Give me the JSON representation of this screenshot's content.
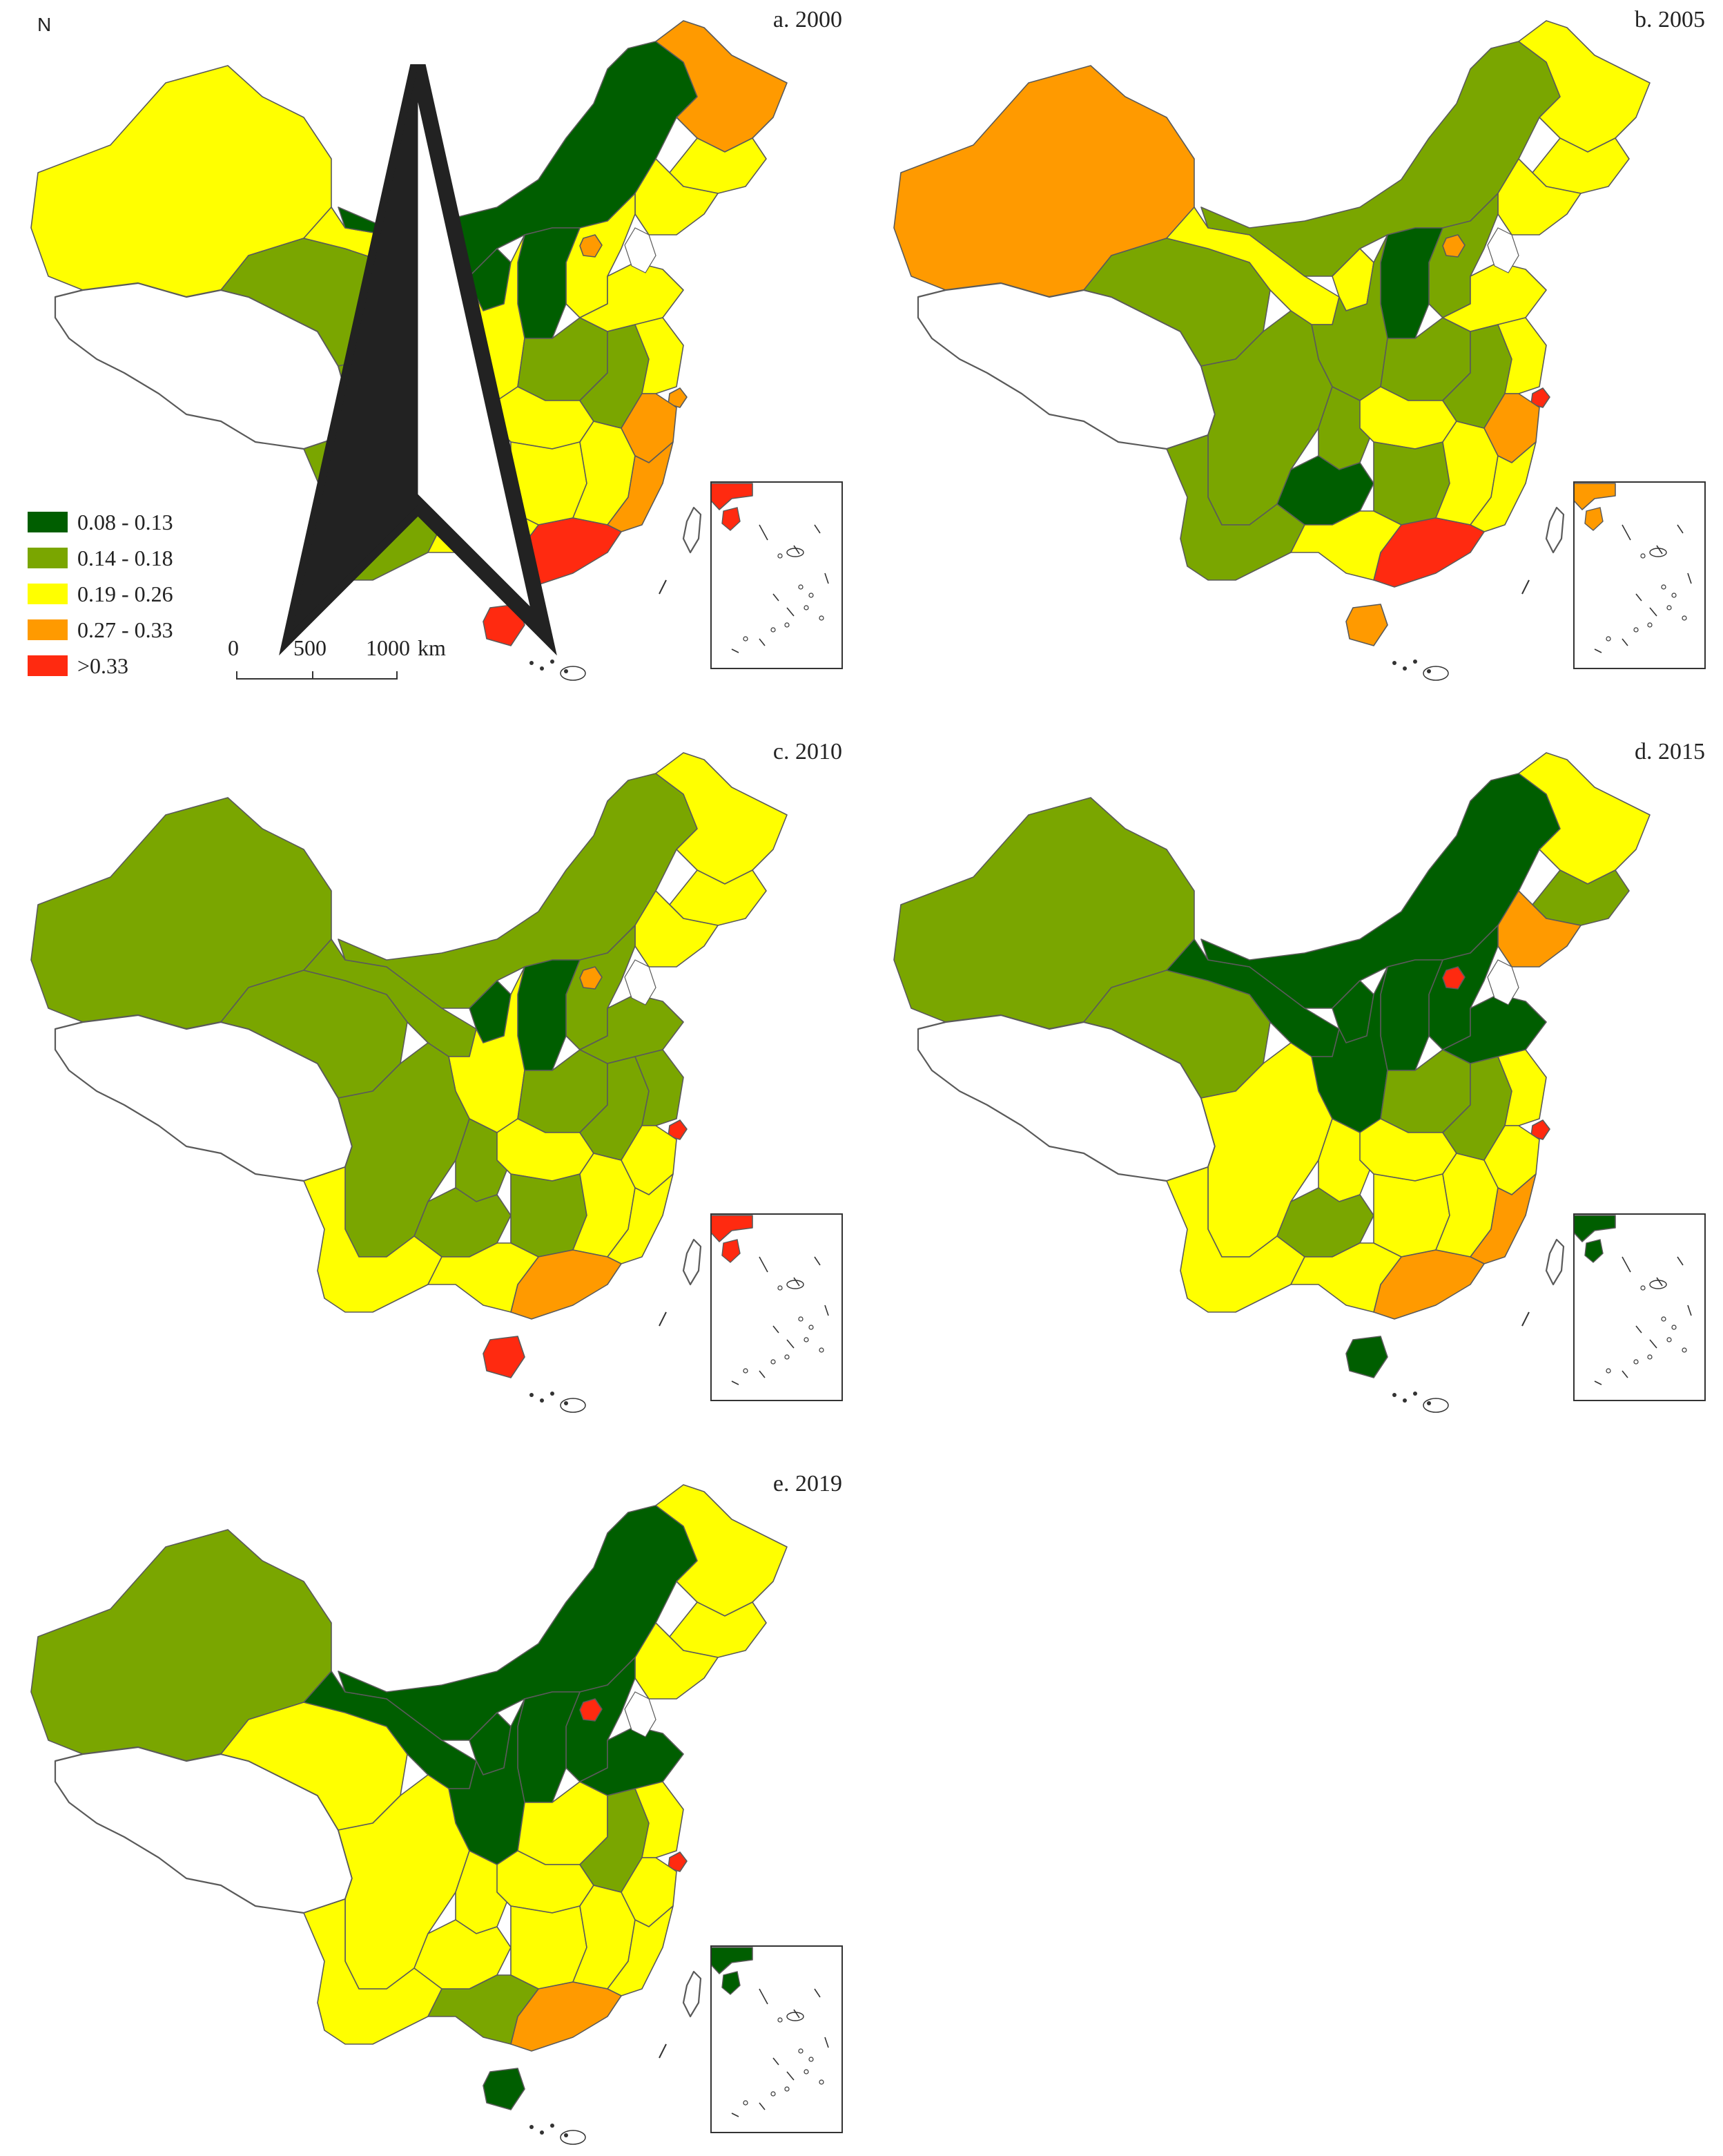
{
  "colors": {
    "c1": "#005e00",
    "c2": "#7aa600",
    "c3": "#ffff00",
    "c4": "#ff9a00",
    "c5": "#ff2a10",
    "nodata": "#ffffff",
    "border": "#5a5a5a"
  },
  "legend": {
    "items": [
      {
        "label": "0.08 - 0.13",
        "color": "#005e00"
      },
      {
        "label": "0.14 - 0.18",
        "color": "#7aa600"
      },
      {
        "label": "0.19 - 0.26",
        "color": "#ffff00"
      },
      {
        "label": "0.27 - 0.33",
        "color": "#ff9a00"
      },
      {
        "label": ">0.33",
        "color": "#ff2a10"
      }
    ]
  },
  "scale_bar": {
    "labels": [
      "0",
      "500",
      "1000"
    ],
    "unit": "km"
  },
  "north_arrow": {
    "label": "N"
  },
  "panels": [
    {
      "title": "a. 2000",
      "regions": {
        "xinjiang": "c3",
        "tibet": "nodata",
        "qinghai": "c2",
        "gansu": "c3",
        "inner_mongolia": "c1",
        "heilongjiang": "c4",
        "jilin": "c3",
        "liaoning": "c3",
        "hebei": "c3",
        "beijing": "c4",
        "shanxi": "c1",
        "shaanxi": "c3",
        "ningxia": "c1",
        "henan": "c2",
        "shandong": "c3",
        "sichuan": "c2",
        "chongqing": "c1",
        "guizhou": "c1",
        "yunnan": "c2",
        "hubei": "c3",
        "hunan": "c3",
        "jiangxi": "c3",
        "anhui": "c2",
        "jiangsu": "c3",
        "shanghai": "c4",
        "zhejiang": "c4",
        "fujian": "c4",
        "guangdong": "c5",
        "guangxi": "c3",
        "hainan": "c5",
        "taiwan": "nodata",
        "scs": "c5"
      }
    },
    {
      "title": "b. 2005",
      "regions": {
        "xinjiang": "c4",
        "tibet": "nodata",
        "qinghai": "c2",
        "gansu": "c3",
        "inner_mongolia": "c2",
        "heilongjiang": "c3",
        "jilin": "c3",
        "liaoning": "c3",
        "hebei": "c2",
        "beijing": "c4",
        "shanxi": "c1",
        "shaanxi": "c2",
        "ningxia": "c3",
        "henan": "c2",
        "shandong": "c3",
        "sichuan": "c2",
        "chongqing": "c2",
        "guizhou": "c1",
        "yunnan": "c2",
        "hubei": "c3",
        "hunan": "c2",
        "jiangxi": "c3",
        "anhui": "c2",
        "jiangsu": "c3",
        "shanghai": "c5",
        "zhejiang": "c4",
        "fujian": "c3",
        "guangdong": "c5",
        "guangxi": "c3",
        "hainan": "c4",
        "taiwan": "nodata",
        "scs": "c4"
      }
    },
    {
      "title": "c. 2010",
      "regions": {
        "xinjiang": "c2",
        "tibet": "nodata",
        "qinghai": "c2",
        "gansu": "c2",
        "inner_mongolia": "c2",
        "heilongjiang": "c3",
        "jilin": "c3",
        "liaoning": "c3",
        "hebei": "c2",
        "beijing": "c4",
        "shanxi": "c1",
        "shaanxi": "c3",
        "ningxia": "c1",
        "henan": "c2",
        "shandong": "c2",
        "sichuan": "c2",
        "chongqing": "c2",
        "guizhou": "c2",
        "yunnan": "c3",
        "hubei": "c3",
        "hunan": "c2",
        "jiangxi": "c3",
        "anhui": "c2",
        "jiangsu": "c2",
        "shanghai": "c5",
        "zhejiang": "c3",
        "fujian": "c3",
        "guangdong": "c4",
        "guangxi": "c3",
        "hainan": "c5",
        "taiwan": "nodata",
        "scs": "c5"
      }
    },
    {
      "title": "d. 2015",
      "regions": {
        "xinjiang": "c2",
        "tibet": "nodata",
        "qinghai": "c2",
        "gansu": "c1",
        "inner_mongolia": "c1",
        "heilongjiang": "c3",
        "jilin": "c2",
        "liaoning": "c4",
        "hebei": "c1",
        "beijing": "c5",
        "shanxi": "c1",
        "shaanxi": "c1",
        "ningxia": "c1",
        "henan": "c2",
        "shandong": "c1",
        "sichuan": "c3",
        "chongqing": "c3",
        "guizhou": "c2",
        "yunnan": "c3",
        "hubei": "c3",
        "hunan": "c3",
        "jiangxi": "c3",
        "anhui": "c2",
        "jiangsu": "c3",
        "shanghai": "c5",
        "zhejiang": "c3",
        "fujian": "c4",
        "guangdong": "c4",
        "guangxi": "c3",
        "hainan": "c1",
        "taiwan": "nodata",
        "scs": "c1"
      }
    },
    {
      "title": "e. 2019",
      "regions": {
        "xinjiang": "c2",
        "tibet": "nodata",
        "qinghai": "c3",
        "gansu": "c1",
        "inner_mongolia": "c1",
        "heilongjiang": "c3",
        "jilin": "c3",
        "liaoning": "c3",
        "hebei": "c1",
        "beijing": "c5",
        "shanxi": "c1",
        "shaanxi": "c1",
        "ningxia": "c1",
        "henan": "c3",
        "shandong": "c1",
        "sichuan": "c3",
        "chongqing": "c3",
        "guizhou": "c3",
        "yunnan": "c3",
        "hubei": "c3",
        "hunan": "c3",
        "jiangxi": "c3",
        "anhui": "c2",
        "jiangsu": "c3",
        "shanghai": "c5",
        "zhejiang": "c3",
        "fujian": "c3",
        "guangdong": "c4",
        "guangxi": "c2",
        "hainan": "c1",
        "taiwan": "nodata",
        "scs": "c1"
      }
    }
  ]
}
